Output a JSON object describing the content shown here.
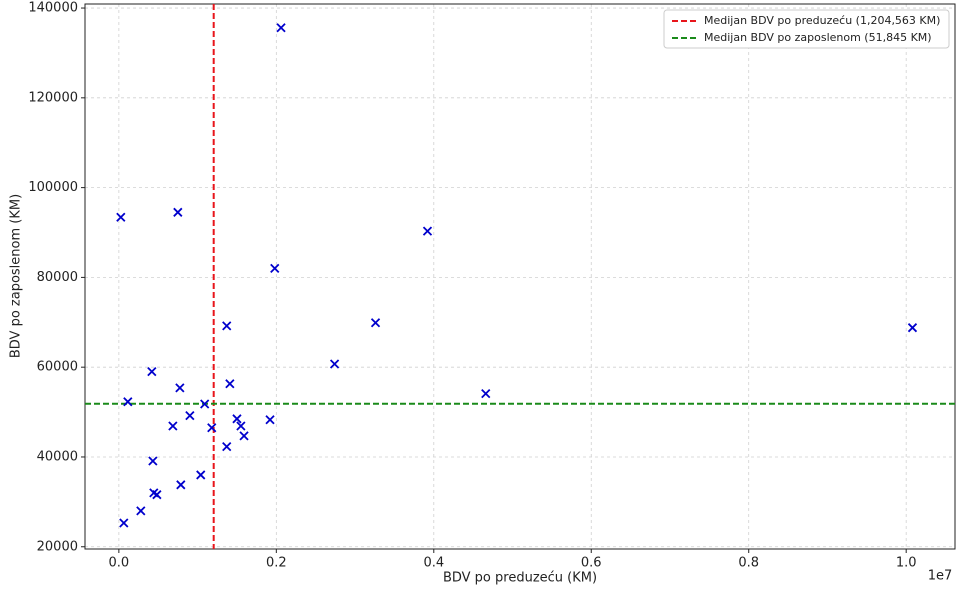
{
  "chart_data": {
    "type": "scatter",
    "x_label": "BDV po preduzeću (KM)",
    "y_label": "BDV po zaposlenom (KM)",
    "x_offset_label": "1e7",
    "color": "#0000cc",
    "x": [
      25000,
      749000,
      2060000,
      1980000,
      3920000,
      1370000,
      3260000,
      10080000,
      2740000,
      419000,
      1410000,
      775000,
      4660000,
      114000,
      1090000,
      902000,
      1500000,
      1920000,
      1550000,
      686000,
      1180000,
      1590000,
      1370000,
      432000,
      1040000,
      787000,
      444000,
      483000,
      279000,
      63000
    ],
    "values": [
      93400,
      94500,
      135600,
      82000,
      90300,
      69200,
      69900,
      68800,
      60700,
      59000,
      56300,
      55400,
      54100,
      52300,
      51800,
      49200,
      48500,
      48300,
      46900,
      46900,
      46500,
      44700,
      42300,
      39100,
      36000,
      33800,
      32000,
      31600,
      28000,
      25300
    ],
    "xlim": [
      -430000,
      10620000
    ],
    "ylim": [
      19500,
      140900
    ],
    "xticks": [
      {
        "value": 0,
        "label": "0.0"
      },
      {
        "value": 2000000,
        "label": "0.2"
      },
      {
        "value": 4000000,
        "label": "0.4"
      },
      {
        "value": 6000000,
        "label": "0.6"
      },
      {
        "value": 8000000,
        "label": "0.8"
      },
      {
        "value": 10000000,
        "label": "1.0"
      }
    ],
    "yticks": [
      20000,
      40000,
      60000,
      80000,
      100000,
      120000,
      140000
    ],
    "grid": true,
    "legend_position": "upper-right",
    "reference_lines": [
      {
        "axis": "x",
        "value": 1204563,
        "label": "Medijan BDV po preduzeću (1,204,563 KM)",
        "color": "#e8151b"
      },
      {
        "axis": "y",
        "value": 51845,
        "label": "Medijan BDV po zaposlenom (51,845 KM)",
        "color": "#1a8a1a"
      }
    ]
  }
}
